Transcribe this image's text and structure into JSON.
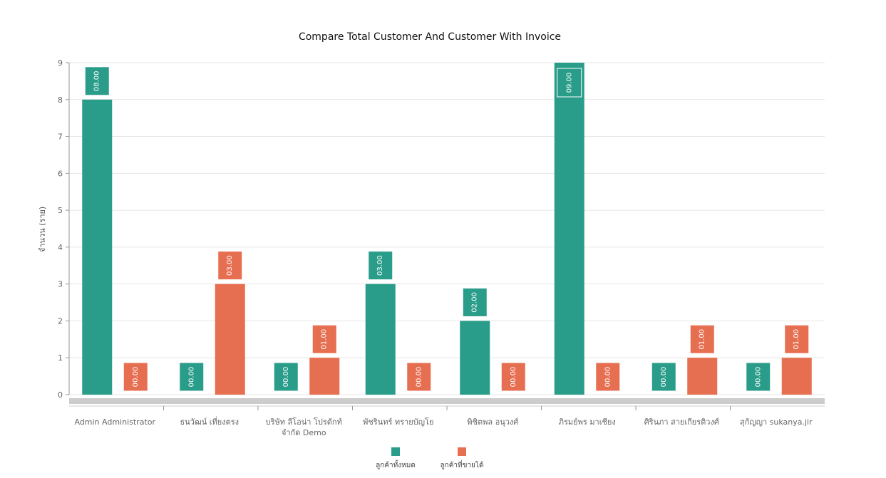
{
  "chart_data": {
    "type": "bar",
    "title": "Compare Total Customer And Customer With Invoice",
    "xlabel": "",
    "ylabel": "จำนวน (ราย)",
    "ylim": [
      0,
      9
    ],
    "yticks": [
      0,
      1,
      2,
      3,
      4,
      5,
      6,
      7,
      8,
      9
    ],
    "grid": true,
    "legend_position": "bottom",
    "categories": [
      "Admin Administrator",
      "ธนวัฒน์ เที่ยงตรง",
      "บริษัท ลีโอน่า โปรดักท์ จำกัด Demo",
      "พัชรินทร์ ทรายบัญโย",
      "พิชิตพล อนุวงศ์",
      "ภิรมย์พร มาเชียง",
      "ศิรินภา สายเกียรติวงศ์",
      "สุกัญญา sukanya.jir"
    ],
    "category_lines": [
      [
        "Admin Administrator"
      ],
      [
        "ธนวัฒน์ เที่ยงตรง"
      ],
      [
        "บริษัท ลีโอน่า โปรดักท์",
        "จำกัด Demo"
      ],
      [
        "พัชรินทร์ ทรายบัญโย"
      ],
      [
        "พิชิตพล อนุวงศ์"
      ],
      [
        "ภิรมย์พร มาเชียง"
      ],
      [
        "ศิรินภา สายเกียรติวงศ์"
      ],
      [
        "สุกัญญา sukanya.jir"
      ]
    ],
    "series": [
      {
        "name": "ลูกค้าทั้งหมด",
        "color": "#2a9d8a",
        "values": [
          8,
          0,
          0,
          3,
          2,
          9,
          0,
          0
        ],
        "labels": [
          "08.00",
          "00.00",
          "00.00",
          "03.00",
          "02.00",
          "09.00",
          "00.00",
          "00.00"
        ]
      },
      {
        "name": "ลูกค้าที่ขายได้",
        "color": "#e76f51",
        "values": [
          0,
          3,
          1,
          0,
          0,
          0,
          1,
          1
        ],
        "labels": [
          "00.00",
          "03.00",
          "01.00",
          "00.00",
          "00.00",
          "00.00",
          "01.00",
          "01.00"
        ]
      }
    ]
  }
}
